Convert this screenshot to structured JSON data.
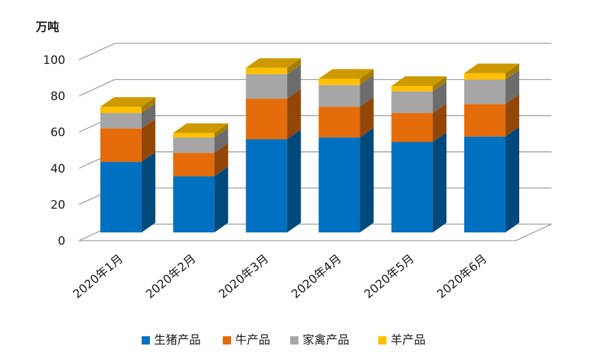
{
  "chart_data": {
    "type": "bar",
    "stacked": true,
    "three_d": true,
    "y_unit": "万吨",
    "ylim": [
      0,
      100
    ],
    "yticks": [
      0,
      20,
      40,
      60,
      80,
      100
    ],
    "grid": true,
    "legend_position": "bottom",
    "categories": [
      "2020年1月",
      "2020年2月",
      "2020年3月",
      "2020年4月",
      "2020年5月",
      "2020年6月"
    ],
    "series": [
      {
        "name": "生猪产品",
        "color": "#0070C0",
        "values": [
          39,
          31,
          51.5,
          52.5,
          50,
          53
        ]
      },
      {
        "name": "牛产品",
        "color": "#E46C0A",
        "values": [
          18.5,
          13,
          22.5,
          17,
          16,
          18
        ]
      },
      {
        "name": "家禽产品",
        "color": "#A6A6A6",
        "values": [
          8.5,
          8.5,
          13.5,
          12,
          12,
          13.5
        ]
      },
      {
        "name": "羊产品",
        "color": "#FFC000",
        "values": [
          3.5,
          2.5,
          3.5,
          3.5,
          3,
          3.5
        ]
      }
    ]
  }
}
